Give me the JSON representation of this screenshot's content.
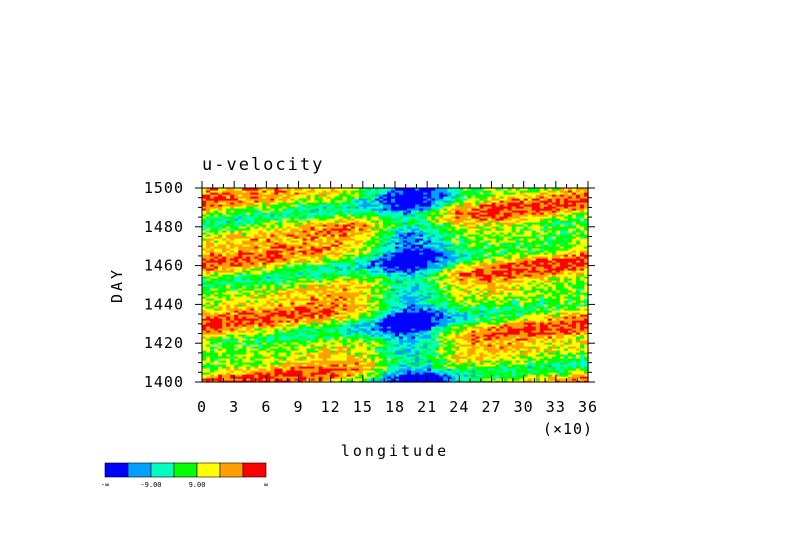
{
  "chart_data": {
    "type": "heatmap",
    "title": "u-velocity",
    "xlabel": "longitude",
    "ylabel": "DAY",
    "x_multiplier": "(×10)",
    "xlim": [
      0,
      36
    ],
    "ylim": [
      1400,
      1500
    ],
    "xticks": [
      "0",
      "3",
      "6",
      "9",
      "12",
      "15",
      "18",
      "21",
      "24",
      "27",
      "30",
      "33",
      "36"
    ],
    "yticks": [
      "1400",
      "1420",
      "1440",
      "1460",
      "1480",
      "1500"
    ],
    "colorbar": {
      "colors": [
        "#0000ff",
        "#00a0ff",
        "#00ffc0",
        "#00ff00",
        "#ffff00",
        "#ffa000",
        "#ff0000"
      ],
      "labels": [
        "-∞",
        "-9.00",
        "9.00",
        "∞"
      ]
    }
  }
}
